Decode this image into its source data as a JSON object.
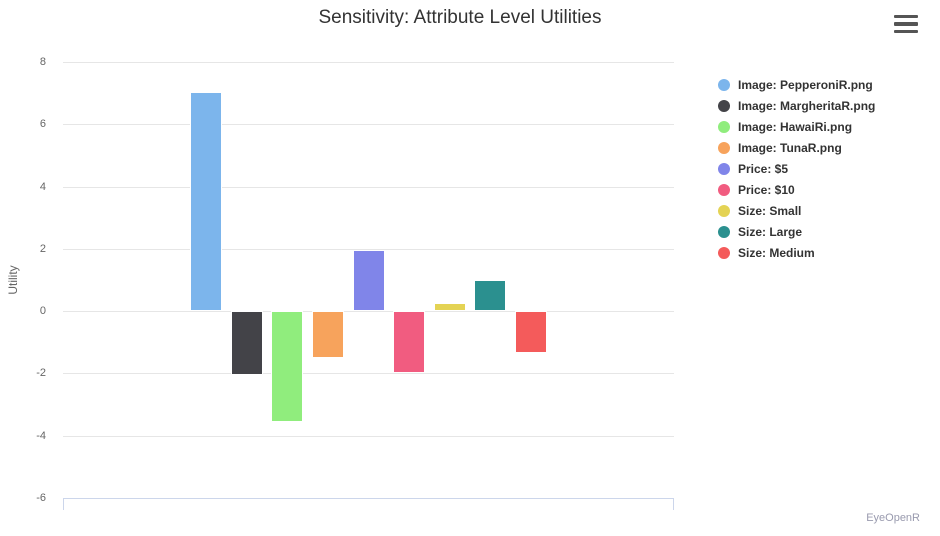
{
  "credits": "EyeOpenR",
  "icons": {
    "context_menu": "hamburger-icon"
  },
  "chart_data": {
    "type": "bar",
    "title": "Sensitivity: Attribute Level Utilities",
    "xlabel": "",
    "ylabel": "Utility",
    "ylim": [
      -6,
      8
    ],
    "yticks": [
      8,
      6,
      4,
      2,
      0,
      -2,
      -4,
      -6
    ],
    "grid": true,
    "legend_position": "right",
    "categories": [
      ""
    ],
    "series": [
      {
        "name": "Image: PepperoniR.png",
        "color": "#7cb5ec",
        "values": [
          7.05
        ]
      },
      {
        "name": "Image: MargheritaR.png",
        "color": "#434348",
        "values": [
          -2.05
        ]
      },
      {
        "name": "Image: HawaiRi.png",
        "color": "#90ed7d",
        "values": [
          -3.55
        ]
      },
      {
        "name": "Image: TunaR.png",
        "color": "#f7a35c",
        "values": [
          -1.5
        ]
      },
      {
        "name": "Price: $5",
        "color": "#8085e9",
        "values": [
          1.95
        ]
      },
      {
        "name": "Price: $10",
        "color": "#f15c80",
        "values": [
          -2.0
        ]
      },
      {
        "name": "Size: Small",
        "color": "#e4d354",
        "values": [
          0.25
        ]
      },
      {
        "name": "Size: Large",
        "color": "#2b908f",
        "values": [
          1.0
        ]
      },
      {
        "name": "Size: Medium",
        "color": "#f45b5b",
        "values": [
          -1.35
        ]
      }
    ],
    "axis_colors": {
      "grid": "#e6e6e6",
      "axis_line": "#ccd6eb",
      "tick_label": "#666666",
      "title": "#333333"
    }
  }
}
